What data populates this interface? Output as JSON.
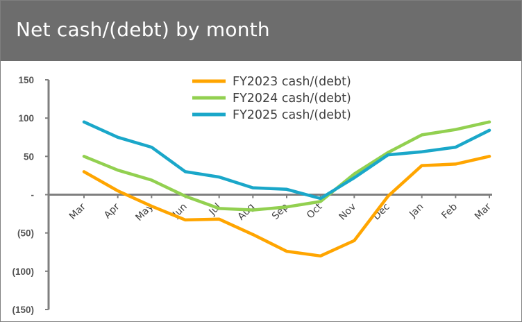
{
  "header": {
    "title": "Net cash/(debt) by month"
  },
  "chart_data": {
    "type": "line",
    "title": "Net cash/(debt) by month",
    "xlabel": "",
    "ylabel": "",
    "categories": [
      "Mar",
      "Apr",
      "May",
      "Jun",
      "Jul",
      "Aug",
      "Sep",
      "Oct",
      "Nov",
      "Dec",
      "Jan",
      "Feb",
      "Mar"
    ],
    "ylim": [
      -150,
      150
    ],
    "yticks": [
      150,
      100,
      50,
      0,
      -50,
      -100,
      -150
    ],
    "ytick_labels": [
      "150",
      "100",
      "50",
      "-",
      "(50)",
      "(100)",
      "(150)"
    ],
    "grid": false,
    "legend_position": "top-center",
    "series": [
      {
        "name": "FY2023 cash/(debt)",
        "color": "#ffa500",
        "values": [
          30,
          5,
          -15,
          -33,
          -32,
          -52,
          -74,
          -80,
          -60,
          -2,
          38,
          40,
          50
        ]
      },
      {
        "name": "FY2024 cash/(debt)",
        "color": "#92d050",
        "values": [
          50,
          32,
          19,
          -2,
          -18,
          -20,
          -16,
          -9,
          27,
          55,
          78,
          85,
          95
        ]
      },
      {
        "name": "FY2025 cash/(debt)",
        "color": "#1aa7c9",
        "values": [
          95,
          75,
          62,
          30,
          23,
          9,
          7,
          -5,
          22,
          52,
          56,
          62,
          84
        ]
      }
    ]
  }
}
